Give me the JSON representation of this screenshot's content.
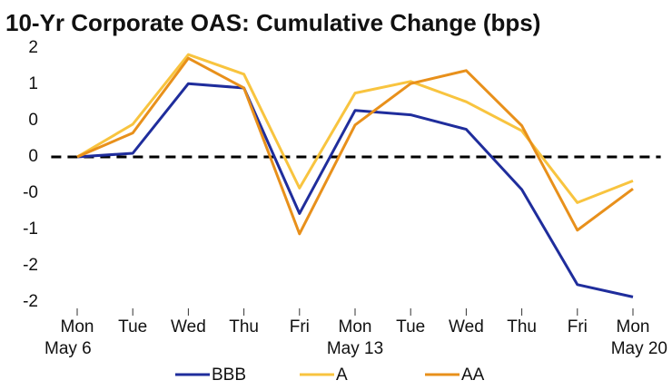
{
  "chart_data": {
    "type": "line",
    "title": "10-Yr Corporate OAS: Cumulative Change (bps)",
    "categories": [
      "Mon",
      "Tue",
      "Wed",
      "Thu",
      "Fri",
      "Mon",
      "Tue",
      "Wed",
      "Thu",
      "Fri",
      "Mon"
    ],
    "x_sublabels": [
      "May 6",
      null,
      null,
      null,
      null,
      "May 13",
      null,
      null,
      null,
      null,
      "May 20"
    ],
    "series": [
      {
        "name": "BBB",
        "color": "#1f2d9c",
        "values": [
          0,
          0.05,
          1.01,
          0.95,
          -0.78,
          0.64,
          0.58,
          0.38,
          -0.45,
          -1.76,
          -1.93
        ]
      },
      {
        "name": "A",
        "color": "#f8c43f",
        "values": [
          0,
          0.45,
          1.41,
          1.14,
          -0.43,
          0.88,
          1.04,
          0.76,
          0.36,
          -0.63,
          -0.33
        ]
      },
      {
        "name": "AA",
        "color": "#e8901b",
        "values": [
          0,
          0.33,
          1.36,
          0.95,
          -1.06,
          0.44,
          1.01,
          1.19,
          0.43,
          -1.01,
          -0.44
        ]
      }
    ],
    "ylim": [
      -2.05,
      1.6
    ],
    "yticks": [
      {
        "value": 1.5,
        "label": "2"
      },
      {
        "value": 1,
        "label": "1"
      },
      {
        "value": 0.5,
        "label": "0"
      },
      0,
      {
        "value": -0.5,
        "label": "-0"
      },
      {
        "value": -1,
        "label": "-1"
      },
      {
        "value": -1.5,
        "label": "-2"
      },
      {
        "value": -2,
        "label": "-2"
      }
    ],
    "zero_line": true,
    "legend": "bottom",
    "grid": false
  }
}
